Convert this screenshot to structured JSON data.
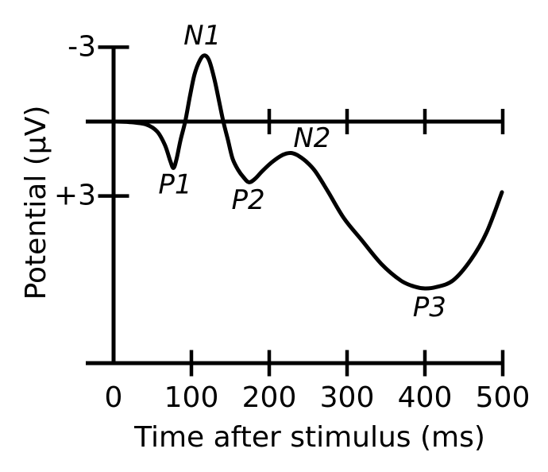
{
  "figure": {
    "background_color": "#ffffff",
    "ink_color": "#000000"
  },
  "chart_data": {
    "type": "line",
    "xlabel": "Time after stimulus (ms)",
    "ylabel": "Potential (µV)",
    "x_axis": {
      "range_ms": [
        0,
        500
      ],
      "tick_values": [
        0,
        100,
        200,
        300,
        400,
        500
      ],
      "tick_labels": [
        "0",
        "100",
        "200",
        "300",
        "400",
        "500"
      ]
    },
    "y_axis": {
      "tick_values": [
        -3,
        3
      ],
      "tick_labels": [
        "-3",
        "+3"
      ],
      "unit": "µV",
      "positive_plotted_downward": true
    },
    "upper_axis_tick_values": [
      200,
      300,
      400,
      500
    ],
    "lower_axis_tick_values": [
      100,
      200,
      300,
      400,
      500
    ],
    "grid": false,
    "legend": false,
    "series": [
      {
        "name": "erp-waveform",
        "points_ms_uv": [
          [
            0,
            0
          ],
          [
            20,
            0.02
          ],
          [
            42,
            0.12
          ],
          [
            56,
            0.4
          ],
          [
            66,
            0.95
          ],
          [
            73,
            1.6
          ],
          [
            77,
            1.87
          ],
          [
            81,
            1.5
          ],
          [
            86,
            0.75
          ],
          [
            92,
            0
          ],
          [
            98,
            -1.0
          ],
          [
            104,
            -1.9
          ],
          [
            111,
            -2.48
          ],
          [
            117,
            -2.67
          ],
          [
            123,
            -2.45
          ],
          [
            130,
            -1.65
          ],
          [
            136,
            -0.75
          ],
          [
            141,
            0
          ],
          [
            147,
            0.75
          ],
          [
            153,
            1.5
          ],
          [
            160,
            1.95
          ],
          [
            167,
            2.25
          ],
          [
            174,
            2.45
          ],
          [
            182,
            2.3
          ],
          [
            191,
            2.0
          ],
          [
            203,
            1.65
          ],
          [
            214,
            1.4
          ],
          [
            222,
            1.29
          ],
          [
            229,
            1.27
          ],
          [
            237,
            1.37
          ],
          [
            247,
            1.6
          ],
          [
            259,
            2.0
          ],
          [
            276,
            2.85
          ],
          [
            296,
            3.9
          ],
          [
            318,
            4.75
          ],
          [
            344,
            5.74
          ],
          [
            369,
            6.41
          ],
          [
            386,
            6.65
          ],
          [
            400,
            6.73
          ],
          [
            414,
            6.68
          ],
          [
            436,
            6.41
          ],
          [
            459,
            5.58
          ],
          [
            479,
            4.49
          ],
          [
            499,
            2.85
          ]
        ]
      }
    ],
    "annotations": [
      {
        "label": "P1",
        "t_ms": 79,
        "v_uv": 2.9,
        "peak_t_ms": 77,
        "peak_v_uv": 1.87
      },
      {
        "label": "N1",
        "t_ms": 114,
        "v_uv": -3.11,
        "peak_t_ms": 117,
        "peak_v_uv": -2.67
      },
      {
        "label": "P2",
        "t_ms": 173,
        "v_uv": 3.53,
        "peak_t_ms": 174,
        "peak_v_uv": 2.45
      },
      {
        "label": "N2",
        "t_ms": 255,
        "v_uv": 1.03,
        "peak_t_ms": 229,
        "peak_v_uv": 1.27
      },
      {
        "label": "P3",
        "t_ms": 406,
        "v_uv": 7.85,
        "peak_t_ms": 400,
        "peak_v_uv": 6.73
      }
    ]
  }
}
